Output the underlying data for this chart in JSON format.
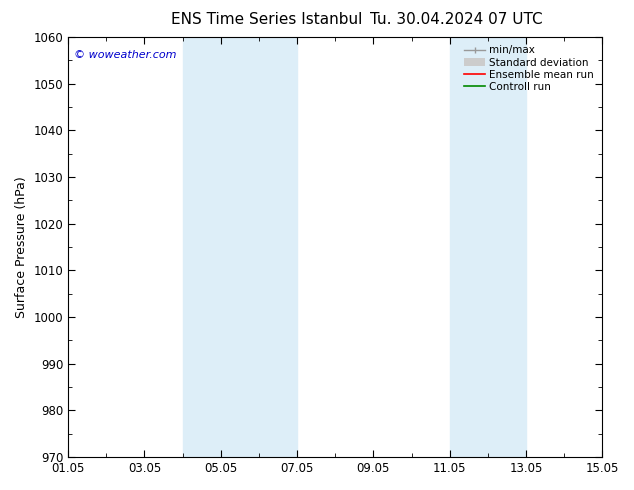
{
  "title_left": "ENS Time Series Istanbul",
  "title_right": "Tu. 30.04.2024 07 UTC",
  "ylabel": "Surface Pressure (hPa)",
  "ylim": [
    970,
    1060
  ],
  "yticks": [
    970,
    980,
    990,
    1000,
    1010,
    1020,
    1030,
    1040,
    1050,
    1060
  ],
  "xlim": [
    0,
    14
  ],
  "xtick_labels": [
    "01.05",
    "03.05",
    "05.05",
    "07.05",
    "09.05",
    "11.05",
    "13.05",
    "15.05"
  ],
  "xtick_positions": [
    0,
    2,
    4,
    6,
    8,
    10,
    12,
    14
  ],
  "blue_bands": [
    {
      "start": 3,
      "end": 5
    },
    {
      "start": 5,
      "end": 6
    },
    {
      "start": 10,
      "end": 11
    },
    {
      "start": 11,
      "end": 12
    }
  ],
  "watermark": "© woweather.com",
  "watermark_color": "#0000cc",
  "bg_color": "#ffffff",
  "plot_bg_color": "#ffffff",
  "band_color": "#ddeef8",
  "legend_labels": [
    "min/max",
    "Standard deviation",
    "Ensemble mean run",
    "Controll run"
  ],
  "legend_colors": [
    "#999999",
    "#cccccc",
    "#ff0000",
    "#008800"
  ],
  "grid_color": "#cccccc",
  "tick_color": "#000000",
  "spine_color": "#000000",
  "title_fontsize": 11,
  "label_fontsize": 9,
  "tick_fontsize": 8.5,
  "legend_fontsize": 7.5
}
